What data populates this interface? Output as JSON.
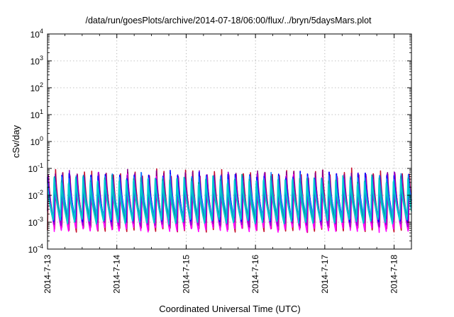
{
  "chart_data": {
    "type": "line",
    "title": "/data/run/goesPlots/archive/2014-07-18/06:00/flux/../bryn/5daysMars.plot",
    "xlabel": "Coordinated Universal Time (UTC)",
    "ylabel": "cSv/day",
    "yscale": "log",
    "ylim": [
      0.0001,
      10000
    ],
    "xlim": [
      "2014-07-13 00:00",
      "2014-07-18 06:00"
    ],
    "y_ticks": [
      {
        "base": "10",
        "exp": "-4"
      },
      {
        "base": "10",
        "exp": "-3"
      },
      {
        "base": "10",
        "exp": "-2"
      },
      {
        "base": "10",
        "exp": "-1"
      },
      {
        "base": "10",
        "exp": "0"
      },
      {
        "base": "10",
        "exp": "1"
      },
      {
        "base": "10",
        "exp": "2"
      },
      {
        "base": "10",
        "exp": "3"
      },
      {
        "base": "10",
        "exp": "4"
      }
    ],
    "x_ticks": [
      "2014-7-13",
      "2014-7-14",
      "2014-7-15",
      "2014-7-16",
      "2014-7-17",
      "2014-7-18"
    ],
    "grid": true,
    "oscillation_period_hours": 2.5,
    "series": [
      {
        "color": "#c8102e",
        "peak": 0.09,
        "trough": 0.0005
      },
      {
        "color": "#8b008b",
        "peak": 0.08,
        "trough": 0.0006
      },
      {
        "color": "#ff00ff",
        "peak": 0.06,
        "trough": 0.0005
      },
      {
        "color": "#9400d3",
        "peak": 0.07,
        "trough": 0.0008
      },
      {
        "color": "#0000ff",
        "peak": 0.07,
        "trough": 0.0012
      },
      {
        "color": "#1e90ff",
        "peak": 0.06,
        "trough": 0.0015
      },
      {
        "color": "#00a0a0",
        "peak": 0.05,
        "trough": 0.0012
      },
      {
        "color": "#00ced1",
        "peak": 0.045,
        "trough": 0.001
      }
    ]
  }
}
